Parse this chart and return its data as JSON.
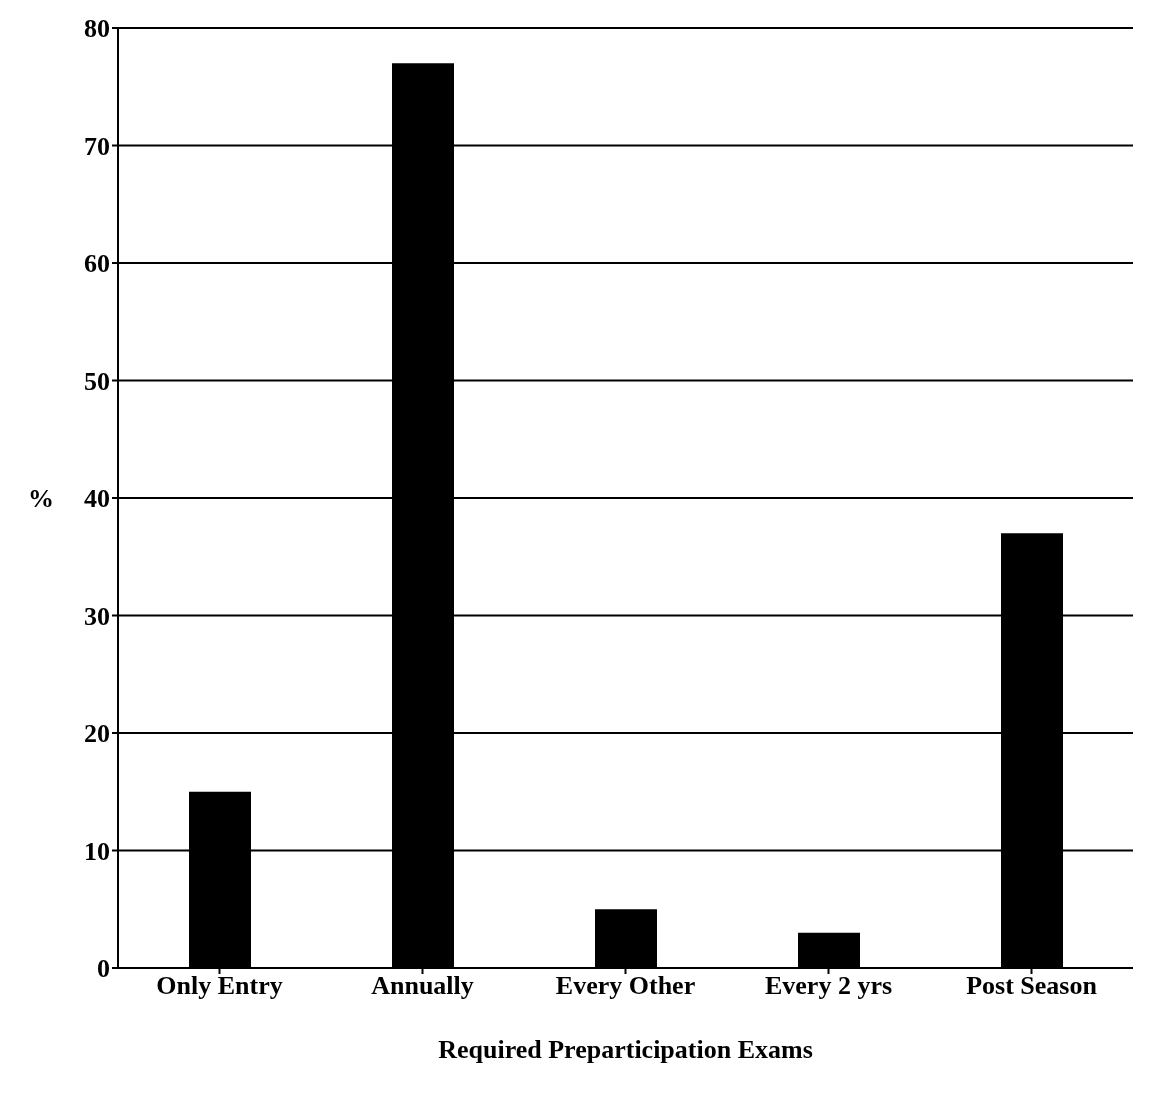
{
  "chart_data": {
    "type": "bar",
    "xlabel": "Required Preparticipation Exams",
    "ylabel": "%",
    "categories": [
      "Only Entry",
      "Annually",
      "Every Other",
      "Every 2 yrs",
      "Post Season"
    ],
    "values": [
      15,
      77,
      5,
      3,
      37
    ],
    "color": "#000000",
    "ylim": [
      0,
      80
    ],
    "yticks": [
      0,
      10,
      20,
      30,
      40,
      50,
      60,
      70,
      80
    ],
    "grid": "y"
  }
}
